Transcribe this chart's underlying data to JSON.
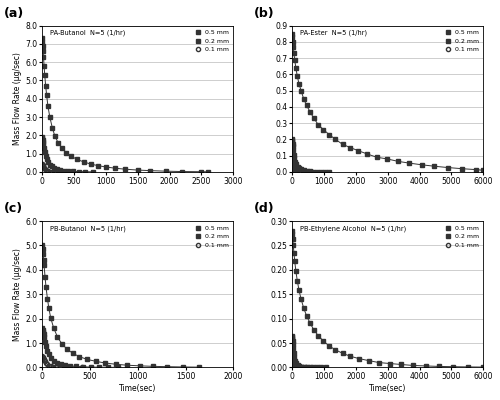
{
  "subplots": [
    {
      "label": "(a)",
      "title": "PA-Butanol  N=5 (1/hr)",
      "xlim": [
        0,
        3000
      ],
      "ylim": [
        0,
        8.0
      ],
      "yticks": [
        0,
        1.0,
        2.0,
        3.0,
        4.0,
        5.0,
        6.0,
        7.0,
        8.0
      ],
      "xticks": [
        0,
        500,
        1000,
        1500,
        2000,
        2500,
        3000
      ],
      "series": [
        {
          "thickness": "0.5 mm",
          "marker": "s",
          "filled": true,
          "xdata": [
            0,
            5,
            10,
            15,
            20,
            30,
            40,
            55,
            70,
            90,
            120,
            160,
            200,
            250,
            310,
            380,
            460,
            550,
            650,
            760,
            880,
            1000,
            1150,
            1300,
            1500,
            1700,
            1950,
            2200,
            2500,
            2600
          ],
          "ydata": [
            7.3,
            7.1,
            6.9,
            6.6,
            6.3,
            5.8,
            5.3,
            4.7,
            4.2,
            3.6,
            3.0,
            2.4,
            1.95,
            1.6,
            1.3,
            1.05,
            0.85,
            0.68,
            0.55,
            0.43,
            0.34,
            0.27,
            0.2,
            0.15,
            0.1,
            0.07,
            0.04,
            0.02,
            0.01,
            0.005
          ]
        },
        {
          "thickness": "0.2 mm",
          "marker": "s",
          "filled": true,
          "xdata": [
            0,
            5,
            10,
            15,
            20,
            30,
            40,
            55,
            70,
            90,
            120,
            150,
            190,
            230,
            280,
            340,
            410,
            490,
            580,
            680,
            790
          ],
          "ydata": [
            1.9,
            1.85,
            1.75,
            1.62,
            1.5,
            1.3,
            1.1,
            0.88,
            0.7,
            0.55,
            0.4,
            0.3,
            0.21,
            0.15,
            0.1,
            0.07,
            0.045,
            0.028,
            0.016,
            0.008,
            0.004
          ]
        },
        {
          "thickness": "0.1 mm",
          "marker": "o",
          "filled": false,
          "xdata": [
            0,
            5,
            10,
            15,
            20,
            30,
            40,
            55,
            70,
            90,
            120,
            160,
            200,
            250,
            300
          ],
          "ydata": [
            0.45,
            0.42,
            0.38,
            0.34,
            0.3,
            0.23,
            0.17,
            0.11,
            0.07,
            0.04,
            0.02,
            0.01,
            0.005,
            0.002,
            0.001
          ]
        }
      ]
    },
    {
      "label": "(b)",
      "title": "PA-Ester  N=5 (1/hr)",
      "xlim": [
        0,
        6000
      ],
      "ylim": [
        0,
        0.9
      ],
      "yticks": [
        0.0,
        0.1,
        0.2,
        0.3,
        0.4,
        0.5,
        0.6,
        0.7,
        0.8,
        0.9
      ],
      "xticks": [
        0,
        1000,
        2000,
        3000,
        4000,
        5000,
        6000
      ],
      "series": [
        {
          "thickness": "0.5 mm",
          "marker": "s",
          "filled": true,
          "xdata": [
            0,
            10,
            20,
            35,
            55,
            80,
            115,
            160,
            215,
            280,
            360,
            450,
            560,
            680,
            820,
            980,
            1160,
            1360,
            1580,
            1820,
            2080,
            2360,
            2660,
            2980,
            3320,
            3680,
            4060,
            4460,
            4880,
            5320,
            5780,
            6000
          ],
          "ydata": [
            0.85,
            0.83,
            0.8,
            0.77,
            0.73,
            0.69,
            0.64,
            0.59,
            0.54,
            0.5,
            0.45,
            0.41,
            0.37,
            0.33,
            0.29,
            0.26,
            0.23,
            0.2,
            0.17,
            0.15,
            0.13,
            0.11,
            0.09,
            0.08,
            0.065,
            0.054,
            0.044,
            0.035,
            0.027,
            0.02,
            0.014,
            0.01
          ]
        },
        {
          "thickness": "0.2 mm",
          "marker": "s",
          "filled": true,
          "xdata": [
            0,
            5,
            10,
            15,
            20,
            30,
            45,
            65,
            90,
            125,
            170,
            225,
            290,
            365,
            450,
            545,
            650,
            765,
            890,
            1020,
            1160
          ],
          "ydata": [
            0.2,
            0.195,
            0.185,
            0.172,
            0.158,
            0.135,
            0.107,
            0.083,
            0.063,
            0.046,
            0.033,
            0.023,
            0.015,
            0.01,
            0.006,
            0.004,
            0.0025,
            0.0015,
            0.0009,
            0.0005,
            0.0003
          ]
        },
        {
          "thickness": "0.1 mm",
          "marker": "o",
          "filled": false,
          "xdata": [
            0,
            5,
            10,
            15,
            20,
            30,
            45,
            65,
            90,
            120,
            160,
            210,
            270,
            340,
            420,
            510,
            610
          ],
          "ydata": [
            0.06,
            0.057,
            0.052,
            0.046,
            0.04,
            0.03,
            0.02,
            0.013,
            0.008,
            0.005,
            0.003,
            0.0015,
            0.0008,
            0.0004,
            0.0002,
            0.0001,
            5e-05
          ]
        }
      ]
    },
    {
      "label": "(c)",
      "title": "PB-Butanol  N=5 (1/hr)",
      "xlim": [
        0,
        2000
      ],
      "ylim": [
        0,
        6.0
      ],
      "yticks": [
        0,
        1.0,
        2.0,
        3.0,
        4.0,
        5.0,
        6.0
      ],
      "xticks": [
        0,
        500,
        1000,
        1500,
        2000
      ],
      "series": [
        {
          "thickness": "0.5 mm",
          "marker": "s",
          "filled": true,
          "xdata": [
            0,
            5,
            10,
            15,
            20,
            30,
            40,
            55,
            70,
            90,
            120,
            160,
            205,
            260,
            320,
            390,
            470,
            560,
            660,
            770,
            890,
            1020,
            1160,
            1310,
            1470,
            1640
          ],
          "ydata": [
            5.0,
            4.85,
            4.65,
            4.42,
            4.18,
            3.72,
            3.3,
            2.82,
            2.42,
            2.02,
            1.62,
            1.25,
            0.97,
            0.75,
            0.58,
            0.44,
            0.33,
            0.25,
            0.18,
            0.13,
            0.09,
            0.065,
            0.044,
            0.03,
            0.019,
            0.011
          ]
        },
        {
          "thickness": "0.2 mm",
          "marker": "s",
          "filled": true,
          "xdata": [
            0,
            5,
            10,
            15,
            20,
            30,
            40,
            55,
            70,
            90,
            120,
            155,
            195,
            242,
            296,
            358,
            428,
            506,
            592,
            686,
            790
          ],
          "ydata": [
            1.6,
            1.55,
            1.47,
            1.36,
            1.25,
            1.06,
            0.88,
            0.68,
            0.53,
            0.39,
            0.27,
            0.19,
            0.13,
            0.088,
            0.059,
            0.038,
            0.024,
            0.015,
            0.009,
            0.005,
            0.003
          ]
        },
        {
          "thickness": "0.1 mm",
          "marker": "o",
          "filled": false,
          "xdata": [
            0,
            5,
            10,
            15,
            20,
            30,
            40,
            55,
            70,
            90,
            115,
            148,
            188,
            235,
            288,
            350,
            420
          ],
          "ydata": [
            0.45,
            0.43,
            0.4,
            0.36,
            0.32,
            0.25,
            0.18,
            0.12,
            0.075,
            0.045,
            0.025,
            0.013,
            0.007,
            0.004,
            0.002,
            0.001,
            0.0005
          ]
        }
      ]
    },
    {
      "label": "(d)",
      "title": "PB-Ethylene Alcohol  N=5 (1/hr)",
      "xlim": [
        0,
        6000
      ],
      "ylim": [
        0,
        0.3
      ],
      "yticks": [
        0.0,
        0.05,
        0.1,
        0.15,
        0.2,
        0.25,
        0.3
      ],
      "xticks": [
        0,
        1000,
        2000,
        3000,
        4000,
        5000,
        6000
      ],
      "series": [
        {
          "thickness": "0.5 mm",
          "marker": "s",
          "filled": true,
          "xdata": [
            0,
            10,
            20,
            35,
            55,
            80,
            115,
            160,
            215,
            280,
            360,
            450,
            560,
            680,
            820,
            980,
            1160,
            1360,
            1580,
            1820,
            2100,
            2400,
            2720,
            3060,
            3420,
            3800,
            4200,
            4620,
            5060,
            5520,
            6000
          ],
          "ydata": [
            0.28,
            0.273,
            0.263,
            0.25,
            0.235,
            0.218,
            0.198,
            0.178,
            0.158,
            0.14,
            0.122,
            0.106,
            0.091,
            0.077,
            0.065,
            0.054,
            0.044,
            0.036,
            0.029,
            0.023,
            0.018,
            0.014,
            0.01,
            0.008,
            0.006,
            0.004,
            0.003,
            0.002,
            0.0015,
            0.001,
            0.0007
          ]
        },
        {
          "thickness": "0.2 mm",
          "marker": "s",
          "filled": true,
          "xdata": [
            0,
            5,
            10,
            15,
            20,
            30,
            45,
            65,
            90,
            125,
            170,
            225,
            290,
            365,
            450,
            548,
            658,
            780,
            915,
            1060
          ],
          "ydata": [
            0.065,
            0.063,
            0.059,
            0.054,
            0.049,
            0.04,
            0.03,
            0.021,
            0.014,
            0.009,
            0.005,
            0.003,
            0.0018,
            0.001,
            0.0006,
            0.0003,
            0.00018,
            0.0001,
            5e-05,
            2e-05
          ]
        },
        {
          "thickness": "0.1 mm",
          "marker": "o",
          "filled": false,
          "xdata": [
            0,
            5,
            10,
            15,
            20,
            30,
            45,
            65,
            90,
            120,
            160,
            210,
            270,
            340,
            420
          ],
          "ydata": [
            0.022,
            0.021,
            0.019,
            0.017,
            0.015,
            0.011,
            0.007,
            0.004,
            0.0025,
            0.0014,
            0.0007,
            0.0003,
            0.00015,
            7e-05,
            3e-05
          ]
        }
      ]
    }
  ],
  "ylabel": "Mass Flow Rate (μg/sec)",
  "xlabel": "Time(sec)",
  "line_color": "#333333",
  "marker_color": "#333333",
  "marker_size": 3.0,
  "background_color": "#ffffff"
}
